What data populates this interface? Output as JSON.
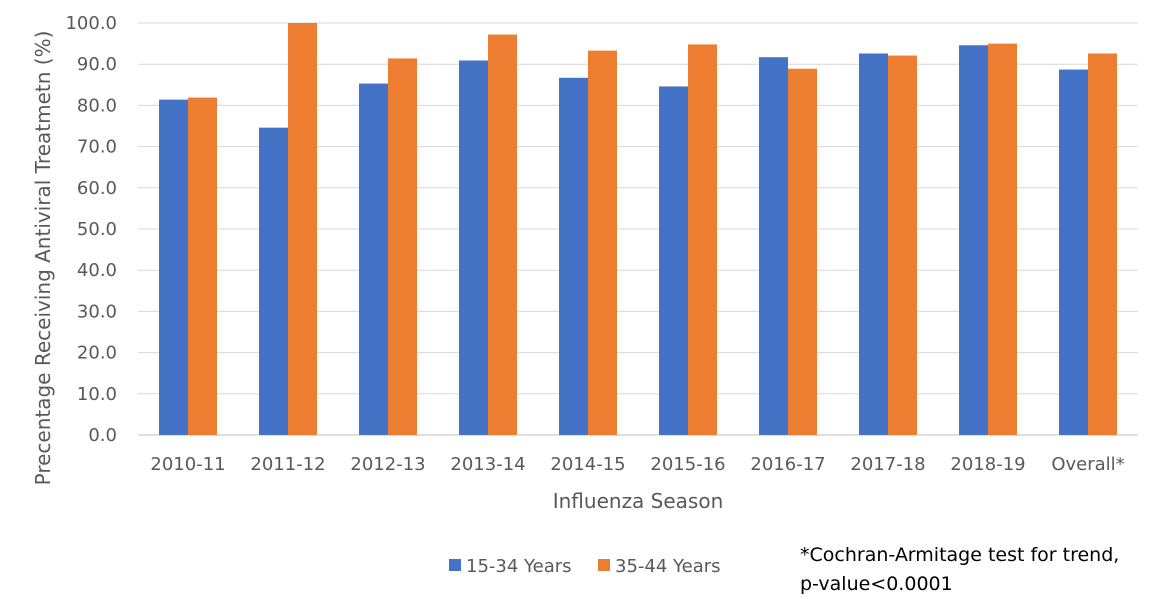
{
  "chart_data": {
    "type": "bar",
    "xlabel": "Influenza Season",
    "ylabel": "Precentage Receiving Antiviral Treatmetn (%)",
    "ylim": [
      0,
      100
    ],
    "ytick_step": 10,
    "ytick_decimals": 1,
    "grid": true,
    "legend_position": "bottom",
    "categories": [
      "2010-11",
      "2011-12",
      "2012-13",
      "2013-14",
      "2014-15",
      "2015-16",
      "2016-17",
      "2017-18",
      "2018-19",
      "Overall*"
    ],
    "series": [
      {
        "name": "15-34 Years",
        "color": "#4472C4",
        "values": [
          81.4,
          74.6,
          85.3,
          90.9,
          86.7,
          84.6,
          91.7,
          92.6,
          94.6,
          88.7
        ]
      },
      {
        "name": "35-44 Years",
        "color": "#ED7D31",
        "values": [
          81.9,
          100.0,
          91.4,
          97.2,
          93.3,
          94.8,
          88.9,
          92.1,
          95.0,
          92.6
        ]
      }
    ]
  },
  "note": {
    "line1": "*Cochran-Armitage test for trend,",
    "line2": "p-value<0.0001"
  }
}
